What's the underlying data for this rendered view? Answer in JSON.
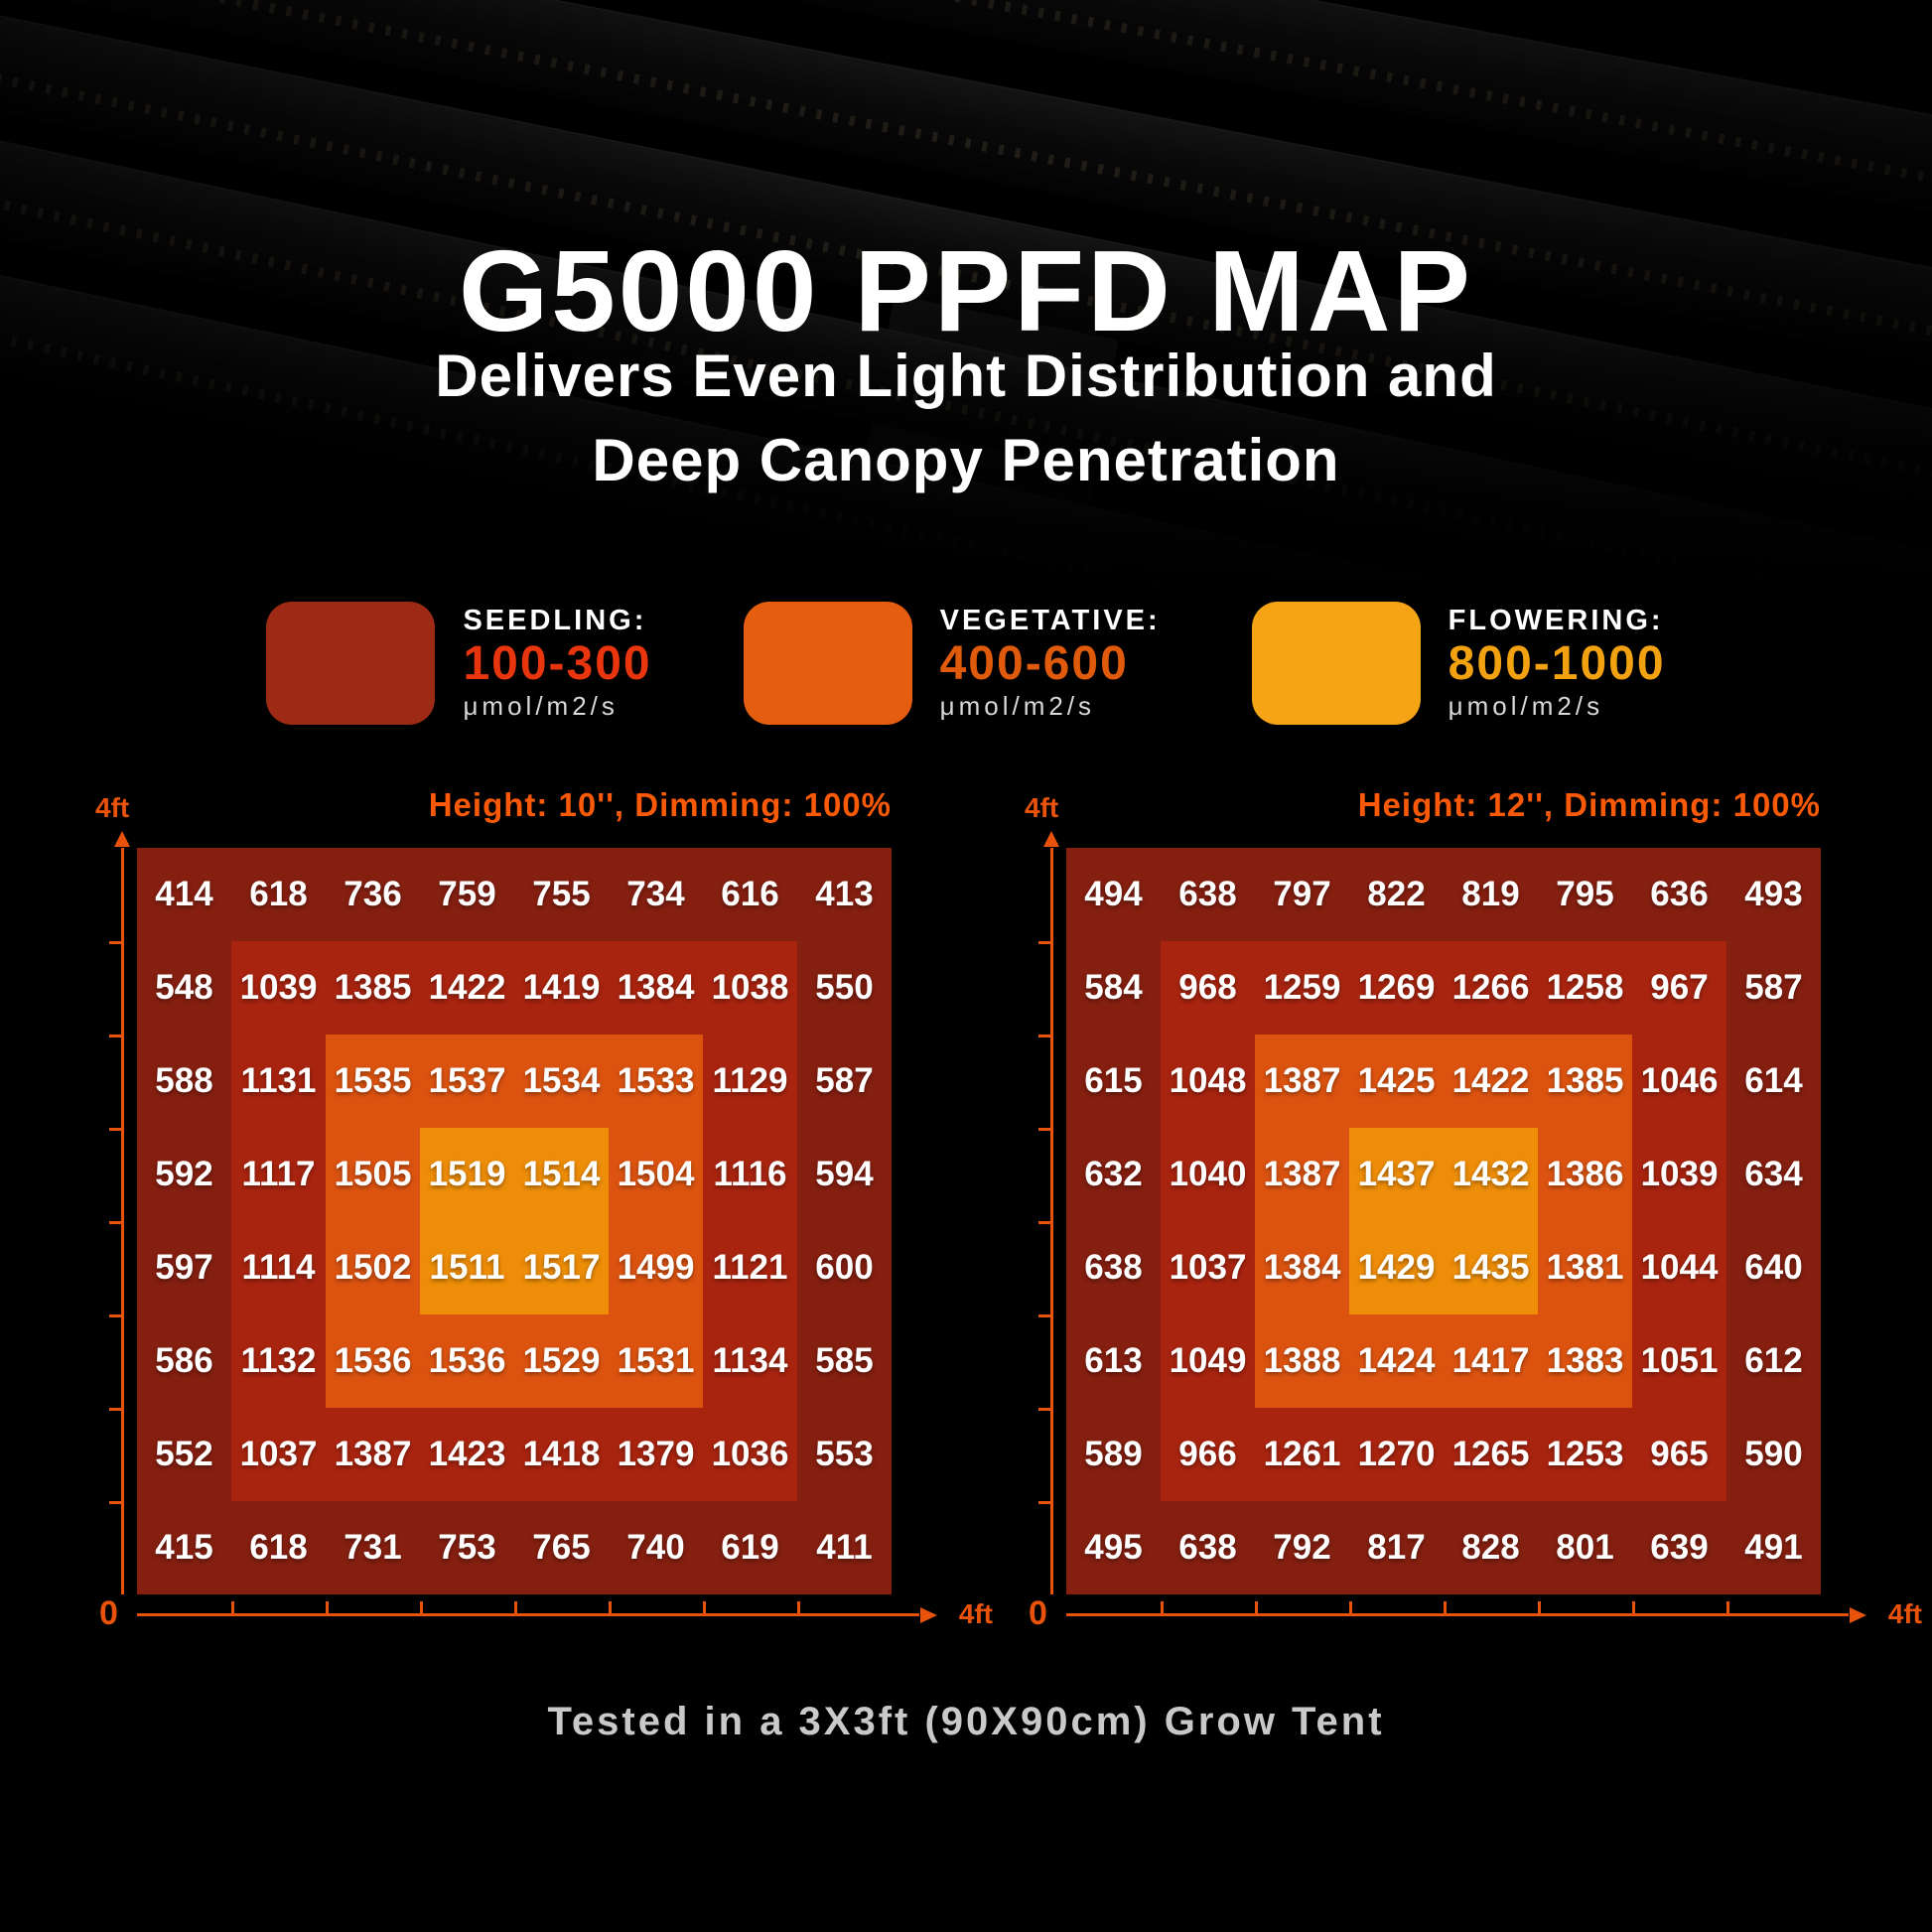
{
  "header": {
    "title": "G5000 PPFD MAP",
    "subtitle_line1": "Delivers Even Light Distribution and",
    "subtitle_line2": "Deep Canopy Penetration"
  },
  "legend": {
    "items": [
      {
        "label": "SEEDLING:",
        "range": "100-300",
        "unit": "μmol/m2/s",
        "swatch_color": "#9c2a14",
        "range_color": "#e8350d"
      },
      {
        "label": "VEGETATIVE:",
        "range": "400-600",
        "unit": "μmol/m2/s",
        "swatch_color": "#e55d0e",
        "range_color": "#e05a0b"
      },
      {
        "label": "FLOWERING:",
        "range": "800-1000",
        "unit": "μmol/m2/s",
        "swatch_color": "#f4a415",
        "range_color": "#f2a210"
      }
    ]
  },
  "chart_data": {
    "type": "heatmap",
    "unit": "μmol/m2/s",
    "grid_size": "8x8",
    "x_axis": {
      "min_label": "0",
      "max_label": "4ft"
    },
    "y_axis": {
      "max_label": "4ft"
    },
    "ring_colors": [
      "#851f10",
      "#a8240f",
      "#dc5310",
      "#ee8d08"
    ],
    "maps": [
      {
        "title": "Height: 10'', Dimming: 100%",
        "rows": [
          [
            414,
            618,
            736,
            759,
            755,
            734,
            616,
            413
          ],
          [
            548,
            1039,
            1385,
            1422,
            1419,
            1384,
            1038,
            550
          ],
          [
            588,
            1131,
            1535,
            1537,
            1534,
            1533,
            1129,
            587
          ],
          [
            592,
            1117,
            1505,
            1519,
            1514,
            1504,
            1116,
            594
          ],
          [
            597,
            1114,
            1502,
            1511,
            1517,
            1499,
            1121,
            600
          ],
          [
            586,
            1132,
            1536,
            1536,
            1529,
            1531,
            1134,
            585
          ],
          [
            552,
            1037,
            1387,
            1423,
            1418,
            1379,
            1036,
            553
          ],
          [
            415,
            618,
            731,
            753,
            765,
            740,
            619,
            411
          ]
        ]
      },
      {
        "title": "Height: 12'', Dimming: 100%",
        "rows": [
          [
            494,
            638,
            797,
            822,
            819,
            795,
            636,
            493
          ],
          [
            584,
            968,
            1259,
            1269,
            1266,
            1258,
            967,
            587
          ],
          [
            615,
            1048,
            1387,
            1425,
            1422,
            1385,
            1046,
            614
          ],
          [
            632,
            1040,
            1387,
            1437,
            1432,
            1386,
            1039,
            634
          ],
          [
            638,
            1037,
            1384,
            1429,
            1435,
            1381,
            1044,
            640
          ],
          [
            613,
            1049,
            1388,
            1424,
            1417,
            1383,
            1051,
            612
          ],
          [
            589,
            966,
            1261,
            1270,
            1265,
            1253,
            965,
            590
          ],
          [
            495,
            638,
            792,
            817,
            828,
            801,
            639,
            491
          ]
        ]
      }
    ]
  },
  "footer": {
    "caption": "Tested in a 3X3ft (90X90cm) Grow Tent"
  },
  "colors": {
    "header_accent": "#fa5a08",
    "axis": "#e8520a",
    "caption": "#c9c9c9",
    "background": "#000000",
    "value_text": "#ffffff"
  }
}
